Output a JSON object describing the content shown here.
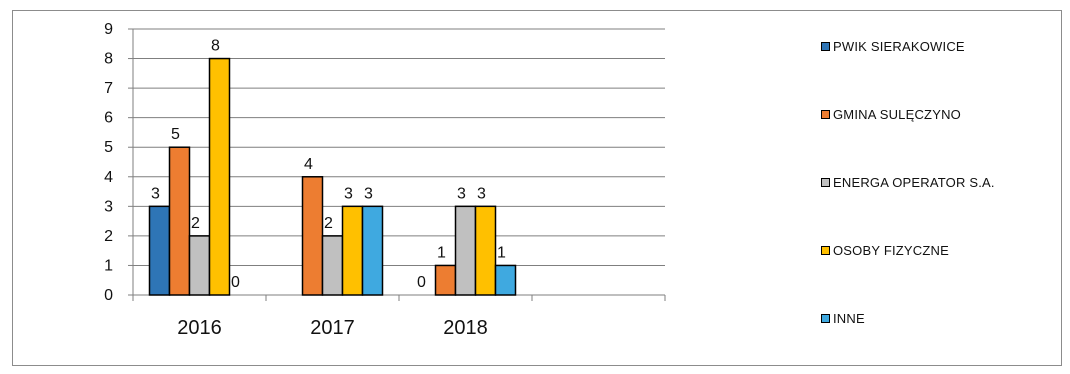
{
  "chart_data": {
    "type": "bar",
    "categories": [
      "2016",
      "2017",
      "2018"
    ],
    "ylim": [
      0,
      9
    ],
    "yticks": [
      0,
      1,
      2,
      3,
      4,
      5,
      6,
      7,
      8,
      9
    ],
    "grid": true,
    "legend_position": "right",
    "series": [
      {
        "name": "PWIK SIERAKOWICE",
        "color": "#2e75b6",
        "values": [
          3,
          0,
          0
        ],
        "labels": [
          "3",
          "",
          "0"
        ]
      },
      {
        "name": "GMINA SULĘCZYNO",
        "color": "#ed7d31",
        "values": [
          5,
          4,
          1
        ],
        "labels": [
          "5",
          "4",
          "1"
        ]
      },
      {
        "name": "ENERGA OPERATOR S.A.",
        "color": "#c0c0c0",
        "values": [
          2,
          2,
          3
        ],
        "labels": [
          "2",
          "2",
          "3"
        ]
      },
      {
        "name": "OSOBY FIZYCZNE",
        "color": "#ffc000",
        "values": [
          8,
          3,
          3
        ],
        "labels": [
          "8",
          "3",
          "3"
        ]
      },
      {
        "name": "INNE",
        "color": "#3fa9e0",
        "values": [
          0,
          3,
          1
        ],
        "labels": [
          "0",
          "3",
          "1"
        ]
      }
    ]
  }
}
